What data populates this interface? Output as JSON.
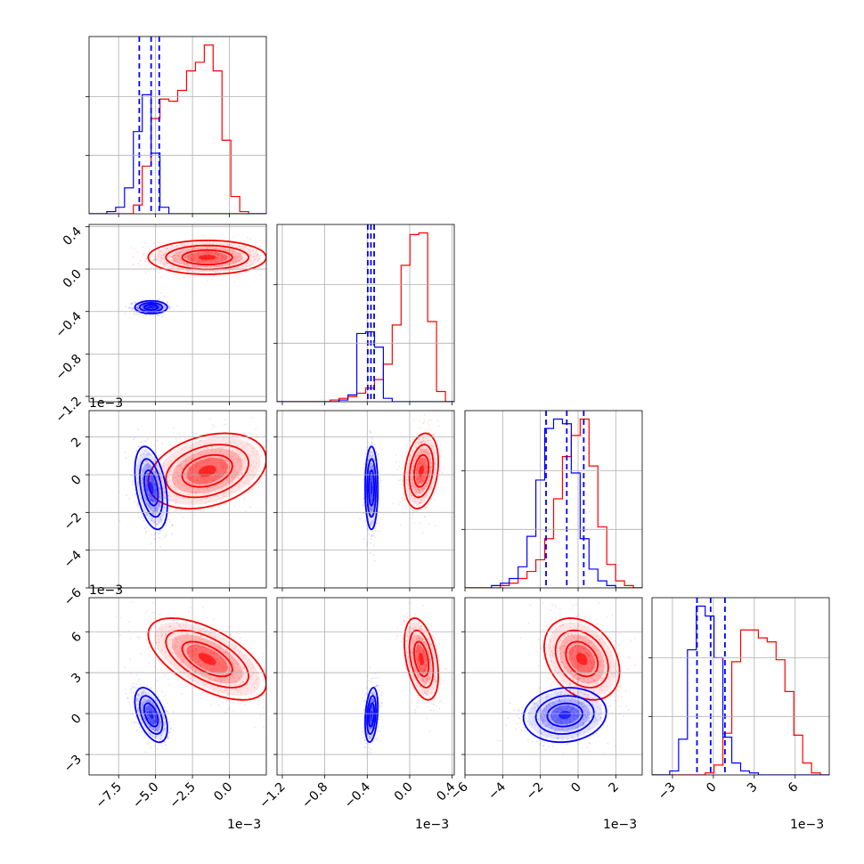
{
  "colors": {
    "series_a": "#ff0000",
    "series_b": "#0000ff",
    "grid": "#b0b0b0"
  },
  "chart_data": {
    "type": "corner",
    "grid": true,
    "legend": "none",
    "parameters": [
      {
        "range": [
          -9.5,
          2.5
        ],
        "ticks": [
          -7.5,
          -5.0,
          -2.5,
          0.0
        ],
        "tick_labels": [
          "−7.5",
          "−5.0",
          "−2.5",
          "0.0"
        ],
        "exponent_label": "1e−3"
      },
      {
        "range": [
          -1.25,
          0.42
        ],
        "ticks": [
          -1.2,
          -0.8,
          -0.4,
          0.0,
          0.4
        ],
        "tick_labels": [
          "−1.2",
          "−0.8",
          "−0.4",
          "0.0",
          "0.4"
        ],
        "exponent_label": "1e−3"
      },
      {
        "range": [
          -6.0,
          3.4
        ],
        "ticks": [
          -6,
          -4,
          -2,
          0,
          2
        ],
        "tick_labels": [
          "−6",
          "−4",
          "−2",
          "0",
          "2"
        ],
        "exponent_label": "1e−3"
      },
      {
        "range": [
          -4.5,
          8.5
        ],
        "ticks": [
          -3,
          0,
          3,
          6
        ],
        "tick_labels": [
          "−3",
          "0",
          "3",
          "6"
        ],
        "exponent_label": "1e−3"
      }
    ],
    "series": [
      {
        "color": "#ff0000",
        "mean": [
          -1.5,
          0.11,
          0.2,
          4.0
        ],
        "std": [
          2.0,
          0.08,
          1.0,
          1.5
        ],
        "corr": {
          "0-1": 0.0,
          "0-2": 0.3,
          "0-3": -0.6,
          "1-2": 0.25,
          "1-3": -0.4,
          "2-3": -0.3
        }
      },
      {
        "color": "#0000ff",
        "mean": [
          -5.3,
          -0.36,
          -0.7,
          -0.1
        ],
        "std": [
          0.55,
          0.03,
          1.1,
          1.0
        ],
        "corr": {
          "0-1": 0.0,
          "0-2": -0.4,
          "0-3": -0.5,
          "1-2": 0.0,
          "1-3": 0.3,
          "2-3": 0.1
        }
      }
    ],
    "quantile_lines": {
      "color": "#0000ff",
      "values": [
        [
          -6.1,
          -5.3,
          -4.75
        ],
        [
          -0.395,
          -0.365,
          -0.335
        ],
        [
          -1.7,
          -0.6,
          0.3
        ],
        [
          -1.2,
          -0.2,
          0.85
        ]
      ]
    },
    "histograms": [
      {
        "bins": [
          -9.5,
          2.5,
          20
        ],
        "series_a": [
          0,
          0,
          0,
          0,
          0,
          4,
          22,
          44,
          53,
          52,
          57,
          66,
          70,
          78,
          66,
          34,
          8,
          1,
          0,
          0
        ],
        "series_b": [
          0,
          0,
          1,
          3,
          12,
          38,
          55,
          28,
          3,
          0,
          0,
          0,
          0,
          0,
          0,
          0,
          0,
          0,
          0,
          0
        ]
      },
      {
        "bins": [
          -1.25,
          0.42,
          20
        ],
        "series_a": [
          0,
          0,
          0,
          0,
          0,
          0,
          1,
          2,
          3,
          5,
          8,
          13,
          22,
          45,
          80,
          98,
          99,
          47,
          6,
          0
        ],
        "series_b": [
          0,
          0,
          0,
          0,
          0,
          0,
          0,
          1,
          4,
          40,
          41,
          32,
          2,
          0,
          0,
          0,
          0,
          0,
          0,
          0
        ]
      },
      {
        "bins": [
          -6.0,
          3.4,
          20
        ],
        "series_a": [
          0,
          0,
          0,
          0,
          1,
          2,
          4,
          7,
          12,
          21,
          38,
          56,
          65,
          72,
          52,
          26,
          10,
          3,
          1,
          0
        ],
        "series_b": [
          0,
          0,
          0,
          1,
          2,
          4,
          9,
          22,
          46,
          68,
          72,
          70,
          49,
          21,
          8,
          3,
          1,
          0,
          0,
          0
        ]
      },
      {
        "bins": [
          -4.5,
          8.5,
          20
        ],
        "series_a": [
          0,
          0,
          0,
          0,
          0,
          0,
          1,
          5,
          21,
          57,
          73,
          73,
          69,
          67,
          58,
          42,
          20,
          6,
          1,
          0
        ],
        "series_b": [
          0,
          0,
          2,
          18,
          63,
          85,
          80,
          59,
          19,
          6,
          2,
          1,
          0,
          0,
          0,
          0,
          0,
          0,
          0,
          0
        ]
      }
    ]
  }
}
